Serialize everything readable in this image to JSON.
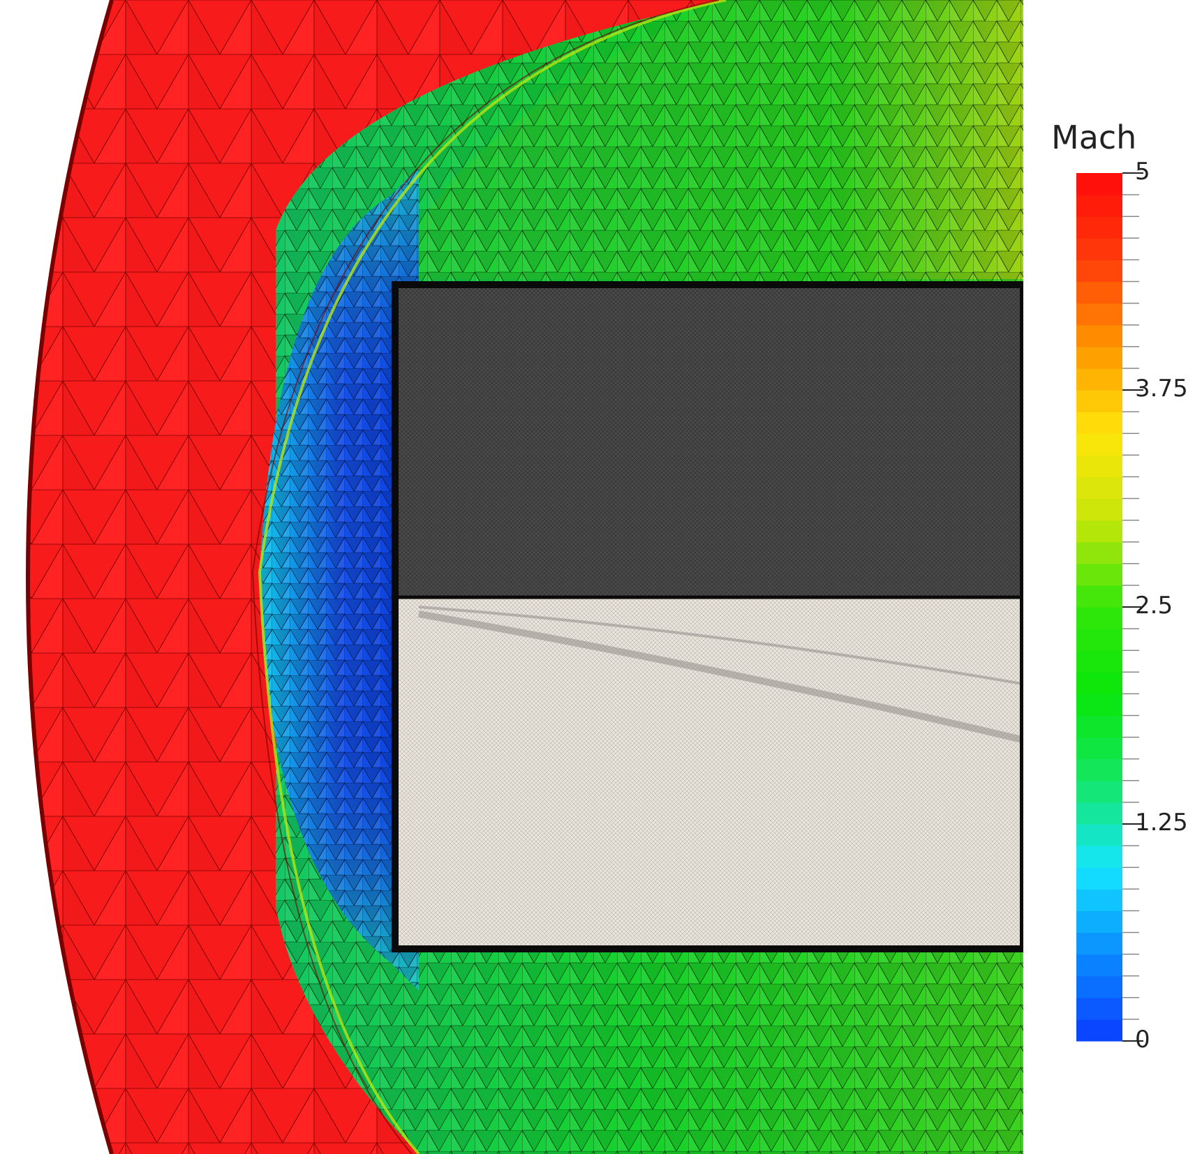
{
  "colorbar": {
    "title": "Mach",
    "min": 0,
    "max": 5,
    "tick_labels": [
      "5",
      "3.75",
      "2.5",
      "1.25",
      "0"
    ],
    "tick_values": [
      5,
      3.75,
      2.5,
      1.25,
      0
    ],
    "colors": [
      "#0a3cff",
      "#0a8cff",
      "#14e6ff",
      "#14e664",
      "#0ae60a",
      "#32e60a",
      "#c8e60a",
      "#ffe60a",
      "#ff9600",
      "#ff3c0a",
      "#ff0a0a"
    ]
  },
  "regions": {
    "freestream_color": "#ff1e1e",
    "shock_layer_color": "#1e64f0",
    "downstream_color": "#1ed228",
    "body_upper_color": "#4a4a4a",
    "body_lower_color": "#e8e4dc"
  }
}
